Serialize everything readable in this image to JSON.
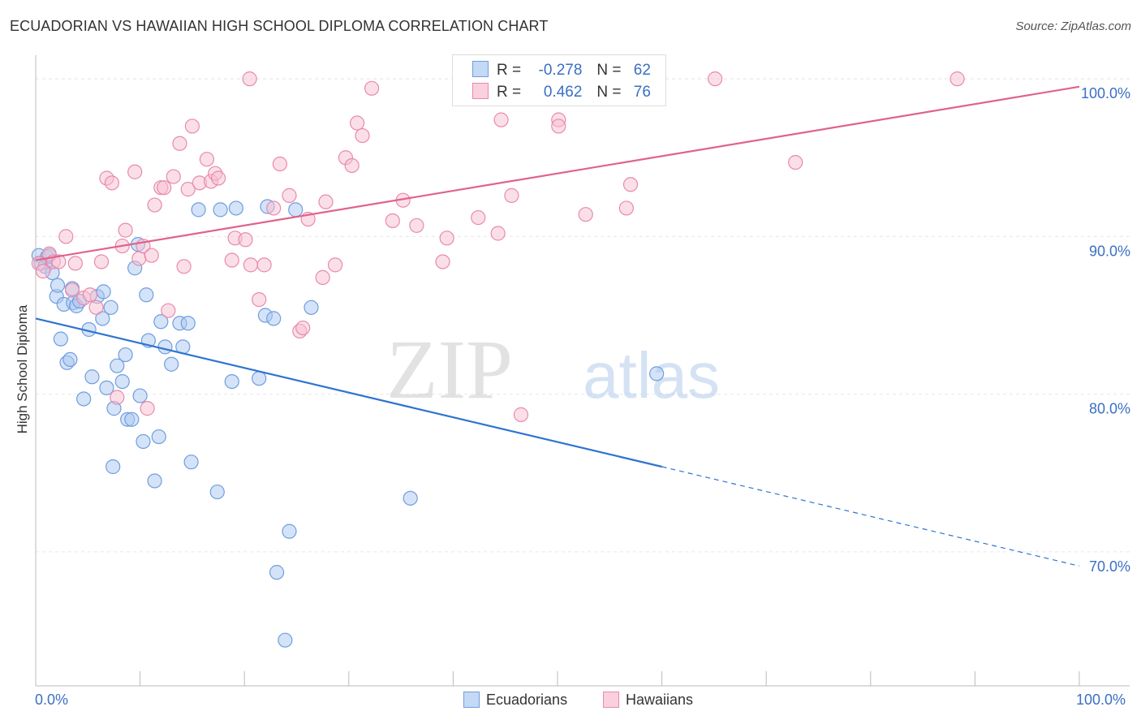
{
  "header": {
    "title": "ECUADORIAN VS HAWAIIAN HIGH SCHOOL DIPLOMA CORRELATION CHART",
    "source": "Source: ZipAtlas.com"
  },
  "watermark": {
    "zip": "ZIP",
    "atlas": "atlas"
  },
  "legend": {
    "rows": [
      {
        "r_label": "R =",
        "r_value": "-0.278",
        "n_label": "N =",
        "n_value": "62",
        "color": "#aac8f0",
        "border": "#6f9ee0"
      },
      {
        "r_label": "R =",
        "r_value": "0.462",
        "n_label": "N =",
        "n_value": "76",
        "color": "#f8c0d2",
        "border": "#e88aaa"
      }
    ]
  },
  "bottom_legend": {
    "items": [
      "Ecuadorians",
      "Hawaiians"
    ]
  },
  "chart_data": {
    "type": "scatter",
    "title": "ECUADORIAN VS HAWAIIAN HIGH SCHOOL DIPLOMA CORRELATION CHART",
    "xlabel": "",
    "ylabel": "High School Diploma",
    "xlim": [
      0,
      100
    ],
    "ylim": [
      61.5,
      101.5
    ],
    "x_tick_labels": [
      "0.0%",
      "100.0%"
    ],
    "y_ticks": [
      70,
      80,
      90,
      100
    ],
    "y_tick_labels": [
      "70.0%",
      "80.0%",
      "90.0%",
      "100.0%"
    ],
    "grid": true,
    "legend_position": "top-center",
    "series": [
      {
        "name": "Ecuadorians",
        "color": "#6f9ee0",
        "fill": "#aac8f0",
        "trend": {
          "x1": 0,
          "y1": 84.8,
          "x2": 60,
          "y2": 75.4,
          "dash_to_x": 100,
          "dash_to_y": 69.1,
          "color": "#2f74d0"
        },
        "points": [
          [
            0.3,
            88.8
          ],
          [
            0.5,
            88.3
          ],
          [
            0.9,
            88.1
          ],
          [
            1.1,
            88.7
          ],
          [
            1.6,
            87.7
          ],
          [
            2.0,
            86.2
          ],
          [
            2.1,
            86.9
          ],
          [
            2.4,
            83.5
          ],
          [
            2.7,
            85.7
          ],
          [
            3.0,
            82.0
          ],
          [
            3.3,
            82.2
          ],
          [
            3.5,
            86.7
          ],
          [
            3.6,
            85.8
          ],
          [
            3.9,
            85.6
          ],
          [
            4.2,
            85.9
          ],
          [
            4.6,
            79.7
          ],
          [
            5.1,
            84.1
          ],
          [
            5.4,
            81.1
          ],
          [
            5.9,
            86.2
          ],
          [
            6.4,
            84.8
          ],
          [
            6.5,
            86.5
          ],
          [
            6.8,
            80.4
          ],
          [
            7.2,
            85.5
          ],
          [
            7.4,
            75.4
          ],
          [
            7.5,
            79.1
          ],
          [
            7.8,
            81.8
          ],
          [
            8.3,
            80.8
          ],
          [
            8.6,
            82.5
          ],
          [
            8.8,
            78.4
          ],
          [
            9.2,
            78.4
          ],
          [
            9.5,
            88.0
          ],
          [
            9.8,
            89.5
          ],
          [
            10.0,
            79.9
          ],
          [
            10.3,
            77.0
          ],
          [
            10.6,
            86.3
          ],
          [
            10.8,
            83.4
          ],
          [
            11.4,
            74.5
          ],
          [
            11.8,
            77.3
          ],
          [
            12.0,
            84.6
          ],
          [
            12.4,
            83.0
          ],
          [
            13.0,
            81.9
          ],
          [
            13.8,
            84.5
          ],
          [
            14.1,
            83.0
          ],
          [
            14.6,
            84.5
          ],
          [
            14.9,
            75.7
          ],
          [
            15.6,
            91.7
          ],
          [
            17.4,
            73.8
          ],
          [
            17.7,
            91.7
          ],
          [
            18.8,
            80.8
          ],
          [
            19.2,
            91.8
          ],
          [
            21.4,
            81.0
          ],
          [
            22.0,
            85.0
          ],
          [
            22.8,
            84.8
          ],
          [
            22.2,
            91.9
          ],
          [
            23.1,
            68.7
          ],
          [
            24.3,
            71.3
          ],
          [
            23.9,
            64.4
          ],
          [
            24.9,
            91.7
          ],
          [
            26.4,
            85.5
          ],
          [
            35.9,
            73.4
          ],
          [
            59.5,
            81.3
          ],
          [
            1.3,
            88.8
          ]
        ]
      },
      {
        "name": "Hawaiians",
        "color": "#e88aaa",
        "fill": "#f8c0d2",
        "trend": {
          "x1": 0,
          "y1": 88.5,
          "x2": 100,
          "y2": 99.5,
          "color": "#e0628c"
        },
        "points": [
          [
            0.3,
            88.3
          ],
          [
            0.7,
            87.8
          ],
          [
            1.3,
            88.9
          ],
          [
            1.7,
            88.4
          ],
          [
            2.2,
            88.4
          ],
          [
            2.9,
            90.0
          ],
          [
            3.5,
            86.6
          ],
          [
            3.8,
            88.3
          ],
          [
            4.6,
            86.1
          ],
          [
            5.2,
            86.3
          ],
          [
            5.8,
            85.5
          ],
          [
            6.3,
            88.4
          ],
          [
            6.8,
            93.7
          ],
          [
            7.3,
            93.4
          ],
          [
            7.8,
            79.8
          ],
          [
            8.3,
            89.4
          ],
          [
            8.6,
            90.4
          ],
          [
            9.5,
            94.1
          ],
          [
            9.9,
            88.6
          ],
          [
            10.3,
            89.4
          ],
          [
            10.7,
            79.1
          ],
          [
            11.1,
            88.8
          ],
          [
            11.4,
            92.0
          ],
          [
            12.0,
            93.1
          ],
          [
            12.3,
            93.1
          ],
          [
            12.7,
            85.3
          ],
          [
            13.2,
            93.8
          ],
          [
            13.8,
            95.9
          ],
          [
            14.2,
            88.1
          ],
          [
            14.6,
            93.0
          ],
          [
            15.0,
            97.0
          ],
          [
            15.7,
            93.4
          ],
          [
            16.4,
            94.9
          ],
          [
            16.8,
            93.5
          ],
          [
            17.2,
            94.0
          ],
          [
            17.5,
            93.7
          ],
          [
            18.8,
            88.5
          ],
          [
            19.1,
            89.9
          ],
          [
            20.1,
            89.8
          ],
          [
            20.6,
            88.2
          ],
          [
            21.4,
            86.0
          ],
          [
            21.9,
            88.2
          ],
          [
            20.5,
            100.0
          ],
          [
            22.8,
            91.8
          ],
          [
            23.4,
            94.6
          ],
          [
            24.3,
            92.6
          ],
          [
            25.3,
            84.0
          ],
          [
            25.6,
            84.2
          ],
          [
            26.1,
            91.1
          ],
          [
            27.5,
            87.4
          ],
          [
            27.8,
            92.2
          ],
          [
            28.7,
            88.2
          ],
          [
            29.7,
            95.0
          ],
          [
            30.3,
            94.5
          ],
          [
            30.8,
            97.2
          ],
          [
            31.3,
            96.4
          ],
          [
            32.2,
            99.4
          ],
          [
            34.2,
            91.0
          ],
          [
            35.2,
            92.3
          ],
          [
            36.5,
            90.7
          ],
          [
            39.0,
            88.4
          ],
          [
            39.4,
            89.9
          ],
          [
            42.4,
            91.2
          ],
          [
            44.3,
            90.2
          ],
          [
            44.6,
            97.4
          ],
          [
            45.6,
            92.6
          ],
          [
            46.5,
            78.7
          ],
          [
            50.1,
            97.4
          ],
          [
            50.6,
            99.0
          ],
          [
            50.1,
            97.0
          ],
          [
            52.7,
            91.4
          ],
          [
            56.6,
            91.8
          ],
          [
            57.0,
            93.3
          ],
          [
            65.1,
            100.0
          ],
          [
            72.8,
            94.7
          ],
          [
            88.3,
            100.0
          ]
        ]
      }
    ]
  }
}
